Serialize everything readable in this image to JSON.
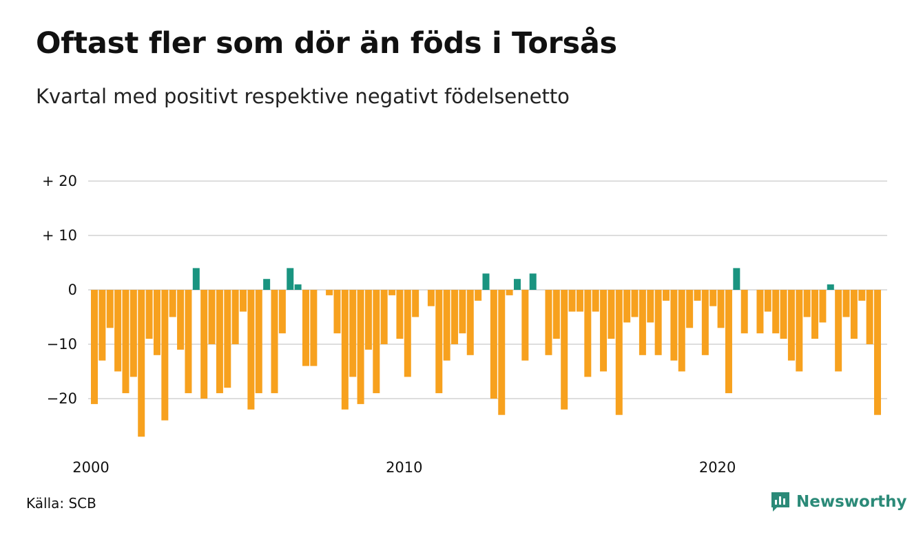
{
  "title": "Oftast fler som dör än föds i Torsås",
  "subtitle": "Kvartal med positivt respektive negativt födelsenetto",
  "source": "Källa: SCB",
  "brand": "Newsworthy",
  "icons": {
    "brand_logo": "chart-bar-logo-icon"
  },
  "colors": {
    "positive": "#1a9480",
    "negative": "#f7a11e",
    "grid": "#dddddd",
    "brand": "#2b8a78"
  },
  "chart_data": {
    "type": "bar",
    "title": "Oftast fler som dör än föds i Torsås",
    "subtitle": "Kvartal med positivt respektive negativt födelsenetto",
    "x_start_year": 2000,
    "x_ticks": [
      "2000",
      "2010",
      "2020"
    ],
    "y_ticks": [
      "−20",
      "−10",
      "0",
      "+ 10",
      "+ 20"
    ],
    "y_tick_values": [
      -20,
      -10,
      0,
      10,
      20
    ],
    "ylim": [
      -28,
      20
    ],
    "grid": true,
    "legend": "none",
    "values": [
      -21,
      -13,
      -7,
      -15,
      -19,
      -16,
      -27,
      -9,
      -12,
      -24,
      -5,
      -11,
      -19,
      4,
      -20,
      -10,
      -19,
      -18,
      -10,
      -4,
      -22,
      -19,
      2,
      -19,
      -8,
      4,
      1,
      -14,
      -14,
      0,
      -1,
      -8,
      -22,
      -16,
      -21,
      -11,
      -19,
      -10,
      -1,
      -9,
      -16,
      -5,
      0,
      -3,
      -19,
      -13,
      -10,
      -8,
      -12,
      -2,
      3,
      -20,
      -23,
      -1,
      2,
      -13,
      3,
      0,
      -12,
      -9,
      -22,
      -4,
      -4,
      -16,
      -4,
      -15,
      -9,
      -23,
      -6,
      -5,
      -12,
      -6,
      -12,
      -2,
      -13,
      -15,
      -7,
      -2,
      -12,
      -3,
      -7,
      -19,
      4,
      -8,
      0,
      -8,
      -4,
      -8,
      -9,
      -13,
      -15,
      -5,
      -9,
      -6,
      1,
      -15,
      -5,
      -9,
      -2,
      -10,
      -23
    ]
  }
}
